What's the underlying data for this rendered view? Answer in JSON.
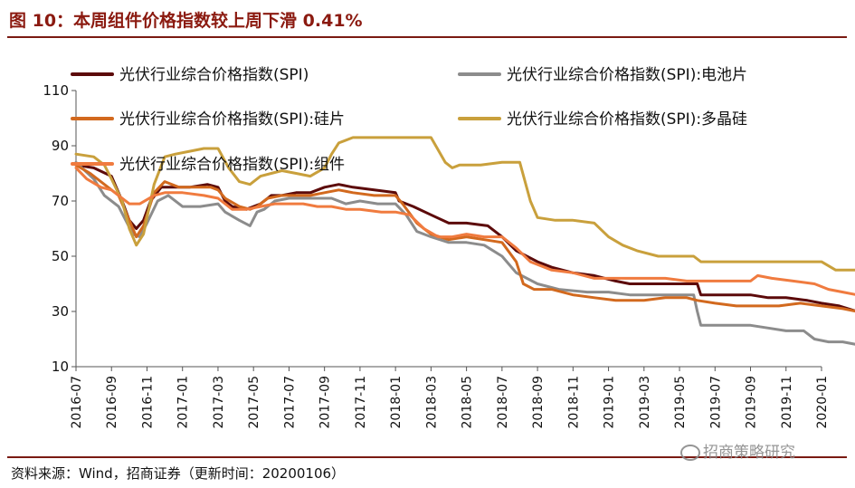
{
  "header": {
    "title": "图 10：本周组件价格指数较上周下滑 0.41%"
  },
  "footer": {
    "source": "资料来源：Wind，招商证券（更新时间：20200106）",
    "watermark": "招商策略研究"
  },
  "chart_data": {
    "type": "line",
    "title": "图 10：本周组件价格指数较上周下滑 0.41%",
    "xlabel": "",
    "ylabel": "",
    "ylim": [
      10,
      110
    ],
    "yticks": [
      10,
      30,
      50,
      70,
      90,
      110
    ],
    "x_ticks": [
      "2016-07",
      "2016-09",
      "2016-11",
      "2017-01",
      "2017-03",
      "2017-05",
      "2017-07",
      "2017-09",
      "2017-11",
      "2018-01",
      "2018-03",
      "2018-05",
      "2018-07",
      "2018-09",
      "2018-11",
      "2019-01",
      "2019-03",
      "2019-05",
      "2019-07",
      "2019-09",
      "2019-11",
      "2020-01"
    ],
    "legend_position": "top",
    "series": [
      {
        "name": "光伏行业综合价格指数(SPI)",
        "color": "#5c0a0a",
        "points": [
          [
            0,
            83
          ],
          [
            0.5,
            82
          ],
          [
            1,
            79
          ],
          [
            1.3,
            70
          ],
          [
            1.5,
            63
          ],
          [
            1.7,
            60
          ],
          [
            1.9,
            63
          ],
          [
            2.1,
            70
          ],
          [
            2.4,
            75
          ],
          [
            2.7,
            75
          ],
          [
            3.2,
            75
          ],
          [
            3.7,
            76
          ],
          [
            4.0,
            75
          ],
          [
            4.2,
            70
          ],
          [
            4.4,
            68
          ],
          [
            4.8,
            67
          ],
          [
            5.2,
            69
          ],
          [
            5.5,
            72
          ],
          [
            5.8,
            72
          ],
          [
            6.2,
            73
          ],
          [
            6.6,
            73
          ],
          [
            7.0,
            75
          ],
          [
            7.4,
            76
          ],
          [
            7.8,
            75
          ],
          [
            8.4,
            74
          ],
          [
            9.0,
            73
          ],
          [
            9.1,
            70
          ],
          [
            9.5,
            68
          ],
          [
            10.0,
            65
          ],
          [
            10.5,
            62
          ],
          [
            11.0,
            62
          ],
          [
            11.6,
            61
          ],
          [
            12.0,
            57
          ],
          [
            12.4,
            52
          ],
          [
            13.0,
            48
          ],
          [
            13.4,
            46
          ],
          [
            14.0,
            44
          ],
          [
            14.6,
            43
          ],
          [
            15.2,
            41
          ],
          [
            15.6,
            40
          ],
          [
            16.2,
            40
          ],
          [
            17.0,
            40
          ],
          [
            17.5,
            40
          ],
          [
            17.6,
            36
          ],
          [
            18.0,
            36
          ],
          [
            18.5,
            36
          ],
          [
            19.0,
            36
          ],
          [
            19.5,
            35
          ],
          [
            20.0,
            35
          ],
          [
            20.6,
            34
          ],
          [
            21.0,
            33
          ],
          [
            21.5,
            32
          ],
          [
            22.0,
            30
          ]
        ]
      },
      {
        "name": "光伏行业综合价格指数(SPI):电池片",
        "color": "#8c8c8c",
        "points": [
          [
            0,
            84
          ],
          [
            0.5,
            78
          ],
          [
            0.8,
            72
          ],
          [
            1.2,
            68
          ],
          [
            1.6,
            58
          ],
          [
            1.8,
            57
          ],
          [
            2.0,
            62
          ],
          [
            2.3,
            70
          ],
          [
            2.6,
            72
          ],
          [
            3.0,
            68
          ],
          [
            3.5,
            68
          ],
          [
            4.0,
            69
          ],
          [
            4.2,
            66
          ],
          [
            4.6,
            63
          ],
          [
            4.9,
            61
          ],
          [
            5.1,
            66
          ],
          [
            5.3,
            67
          ],
          [
            5.6,
            70
          ],
          [
            6.0,
            71
          ],
          [
            6.4,
            71
          ],
          [
            6.8,
            71
          ],
          [
            7.2,
            71
          ],
          [
            7.6,
            69
          ],
          [
            8.0,
            70
          ],
          [
            8.5,
            69
          ],
          [
            9.0,
            69
          ],
          [
            9.3,
            65
          ],
          [
            9.6,
            59
          ],
          [
            10.0,
            57
          ],
          [
            10.5,
            55
          ],
          [
            11.0,
            55
          ],
          [
            11.5,
            54
          ],
          [
            12.0,
            50
          ],
          [
            12.4,
            44
          ],
          [
            13.0,
            40
          ],
          [
            13.6,
            38
          ],
          [
            14.4,
            37
          ],
          [
            15.0,
            37
          ],
          [
            15.6,
            36
          ],
          [
            16.4,
            36
          ],
          [
            17.0,
            36
          ],
          [
            17.4,
            36
          ],
          [
            17.5,
            30
          ],
          [
            17.6,
            25
          ],
          [
            18.0,
            25
          ],
          [
            18.5,
            25
          ],
          [
            19.0,
            25
          ],
          [
            19.5,
            24
          ],
          [
            20.0,
            23
          ],
          [
            20.5,
            23
          ],
          [
            20.8,
            20
          ],
          [
            21.2,
            19
          ],
          [
            21.6,
            19
          ],
          [
            22.0,
            18
          ]
        ]
      },
      {
        "name": "光伏行业综合价格指数(SPI):硅片",
        "color": "#d2691e",
        "points": [
          [
            0,
            83
          ],
          [
            0.4,
            80
          ],
          [
            0.8,
            76
          ],
          [
            1.2,
            72
          ],
          [
            1.5,
            63
          ],
          [
            1.7,
            57
          ],
          [
            1.9,
            61
          ],
          [
            2.2,
            73
          ],
          [
            2.5,
            77
          ],
          [
            2.9,
            75
          ],
          [
            3.3,
            75
          ],
          [
            3.8,
            75
          ],
          [
            4.0,
            74
          ],
          [
            4.2,
            71
          ],
          [
            4.6,
            68
          ],
          [
            4.9,
            67
          ],
          [
            5.1,
            68
          ],
          [
            5.4,
            71
          ],
          [
            5.8,
            72
          ],
          [
            6.2,
            72
          ],
          [
            6.6,
            72
          ],
          [
            7.0,
            73
          ],
          [
            7.4,
            74
          ],
          [
            7.8,
            73
          ],
          [
            8.4,
            72
          ],
          [
            9.0,
            72
          ],
          [
            9.2,
            69
          ],
          [
            9.6,
            62
          ],
          [
            10.0,
            58
          ],
          [
            10.5,
            56
          ],
          [
            11.0,
            57
          ],
          [
            11.5,
            56
          ],
          [
            12.0,
            55
          ],
          [
            12.4,
            48
          ],
          [
            12.6,
            40
          ],
          [
            12.9,
            38
          ],
          [
            13.4,
            38
          ],
          [
            14.0,
            36
          ],
          [
            14.6,
            35
          ],
          [
            15.2,
            34
          ],
          [
            16.0,
            34
          ],
          [
            16.6,
            35
          ],
          [
            17.2,
            35
          ],
          [
            17.5,
            34
          ],
          [
            18.0,
            33
          ],
          [
            18.6,
            32
          ],
          [
            19.2,
            32
          ],
          [
            19.8,
            32
          ],
          [
            20.4,
            33
          ],
          [
            21.0,
            32
          ],
          [
            21.6,
            31
          ],
          [
            22.0,
            30
          ]
        ]
      },
      {
        "name": "光伏行业综合价格指数(SPI):多晶硅",
        "color": "#c9a03c",
        "points": [
          [
            0,
            87
          ],
          [
            0.5,
            86
          ],
          [
            0.8,
            83
          ],
          [
            1.0,
            78
          ],
          [
            1.3,
            70
          ],
          [
            1.5,
            60
          ],
          [
            1.7,
            54
          ],
          [
            1.9,
            58
          ],
          [
            2.2,
            76
          ],
          [
            2.5,
            86
          ],
          [
            2.8,
            87
          ],
          [
            3.2,
            88
          ],
          [
            3.6,
            89
          ],
          [
            4.0,
            89
          ],
          [
            4.3,
            82
          ],
          [
            4.6,
            77
          ],
          [
            4.9,
            76
          ],
          [
            5.2,
            79
          ],
          [
            5.5,
            80
          ],
          [
            5.8,
            81
          ],
          [
            6.2,
            80
          ],
          [
            6.6,
            79
          ],
          [
            7.0,
            82
          ],
          [
            7.2,
            87
          ],
          [
            7.4,
            91
          ],
          [
            7.8,
            93
          ],
          [
            8.4,
            93
          ],
          [
            9.0,
            93
          ],
          [
            9.6,
            93
          ],
          [
            10.0,
            93
          ],
          [
            10.4,
            84
          ],
          [
            10.6,
            82
          ],
          [
            10.8,
            83
          ],
          [
            11.4,
            83
          ],
          [
            12.0,
            84
          ],
          [
            12.5,
            84
          ],
          [
            12.8,
            70
          ],
          [
            13.0,
            64
          ],
          [
            13.5,
            63
          ],
          [
            14.0,
            63
          ],
          [
            14.6,
            62
          ],
          [
            15.0,
            57
          ],
          [
            15.4,
            54
          ],
          [
            15.8,
            52
          ],
          [
            16.4,
            50
          ],
          [
            17.0,
            50
          ],
          [
            17.4,
            50
          ],
          [
            17.6,
            48
          ],
          [
            18.0,
            48
          ],
          [
            18.6,
            48
          ],
          [
            19.2,
            48
          ],
          [
            19.8,
            48
          ],
          [
            20.4,
            48
          ],
          [
            21.0,
            48
          ],
          [
            21.4,
            45
          ],
          [
            22.0,
            45
          ]
        ]
      },
      {
        "name": "光伏行业综合价格指数(SPI):组件",
        "color": "#f07b3f",
        "points": [
          [
            0,
            82
          ],
          [
            0.3,
            78
          ],
          [
            0.7,
            75
          ],
          [
            1.0,
            74
          ],
          [
            1.5,
            69
          ],
          [
            1.8,
            69
          ],
          [
            2.2,
            72
          ],
          [
            2.5,
            73
          ],
          [
            3.0,
            73
          ],
          [
            3.6,
            72
          ],
          [
            4.0,
            71
          ],
          [
            4.4,
            67
          ],
          [
            4.8,
            67
          ],
          [
            5.2,
            68
          ],
          [
            5.6,
            69
          ],
          [
            6.0,
            69
          ],
          [
            6.4,
            69
          ],
          [
            6.8,
            68
          ],
          [
            7.2,
            68
          ],
          [
            7.6,
            67
          ],
          [
            8.0,
            67
          ],
          [
            8.6,
            66
          ],
          [
            9.0,
            66
          ],
          [
            9.4,
            65
          ],
          [
            9.8,
            60
          ],
          [
            10.2,
            57
          ],
          [
            10.6,
            57
          ],
          [
            11.0,
            58
          ],
          [
            11.5,
            57
          ],
          [
            12.0,
            57
          ],
          [
            12.4,
            53
          ],
          [
            12.8,
            48
          ],
          [
            13.4,
            45
          ],
          [
            14.0,
            44
          ],
          [
            14.6,
            42
          ],
          [
            15.2,
            42
          ],
          [
            16.0,
            42
          ],
          [
            16.6,
            42
          ],
          [
            17.2,
            41
          ],
          [
            17.8,
            41
          ],
          [
            18.4,
            41
          ],
          [
            19.0,
            41
          ],
          [
            19.2,
            43
          ],
          [
            19.6,
            42
          ],
          [
            20.2,
            41
          ],
          [
            20.8,
            40
          ],
          [
            21.2,
            38
          ],
          [
            21.6,
            37
          ],
          [
            22.0,
            36
          ]
        ]
      }
    ]
  }
}
